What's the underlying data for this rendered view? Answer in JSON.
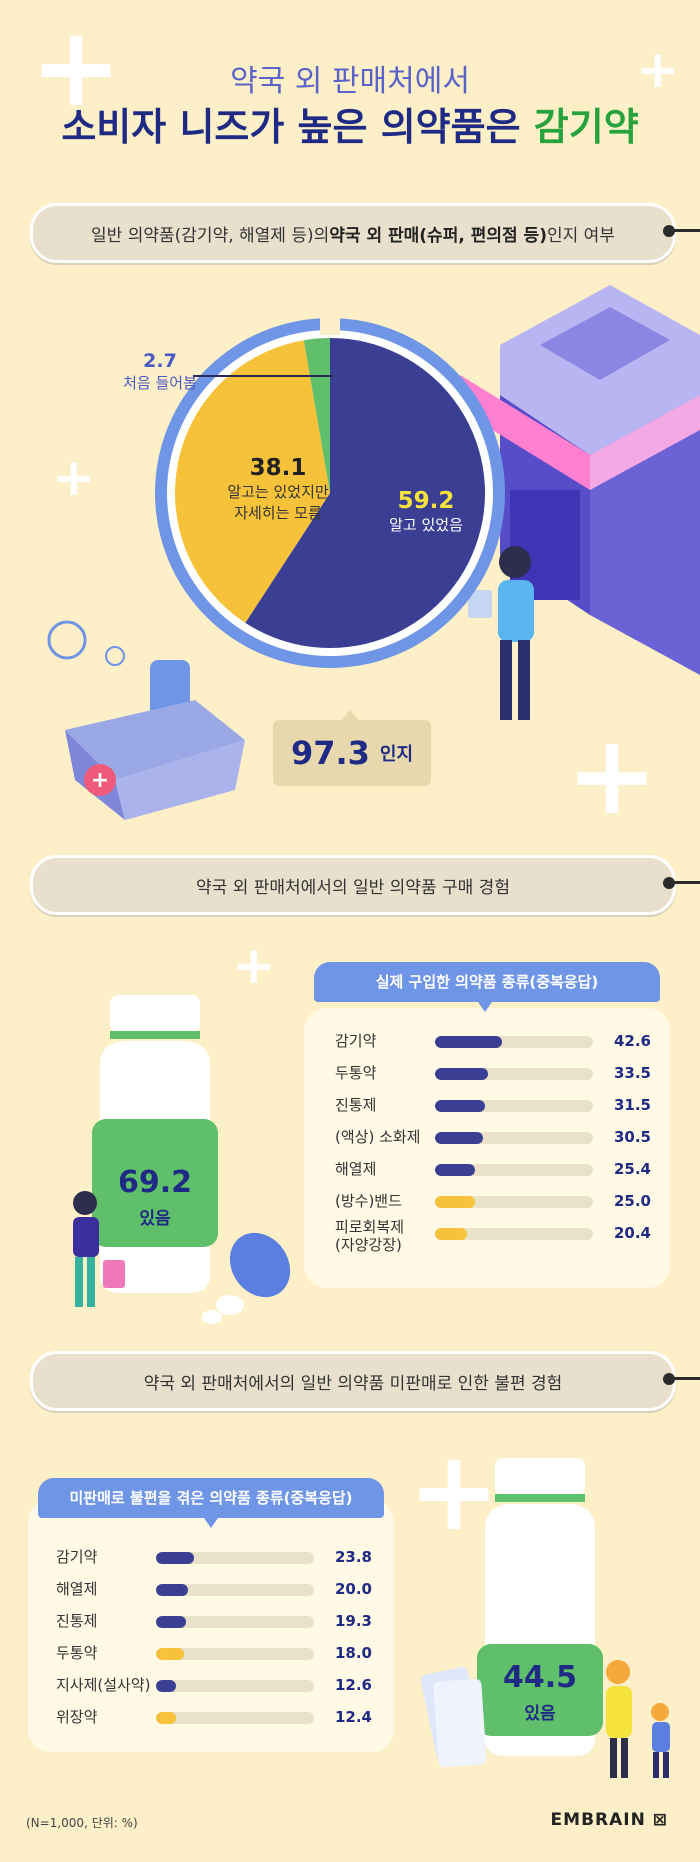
{
  "header": {
    "subtitle": "약국 외 판매처에서",
    "title_main": "소비자 니즈가 높은 의약품은 ",
    "title_highlight": "감기약"
  },
  "section1": {
    "banner_pre": "일반 의약품(감기약, 해열제 등)의 ",
    "banner_bold": "약국 외 판매(슈퍼, 편의점 등)",
    "banner_post": " 인지 여부",
    "recognition_value": "97.3",
    "recognition_label": "인지"
  },
  "section2": {
    "banner": "약국 외 판매처에서의  일반 의약품 구매 경험",
    "bottle_value": "69.2",
    "bottle_label": "있음",
    "card_title": "실제 구입한 의약품 종류(중복응답)"
  },
  "section3": {
    "banner": "약국 외 판매처에서의  일반 의약품 미판매로 인한 불편 경험",
    "bottle_value": "44.5",
    "bottle_label": "있음",
    "card_title": "미판매로 불편을 겪은 의약품 종류(중복응답)"
  },
  "footer": {
    "note": "(N=1,000, 단위: %)",
    "logo": "EMBRAIN ⊠"
  },
  "colors": {
    "navy": "#3b3f93",
    "yellow": "#f5c23a",
    "green": "#5fbf6a",
    "ring": "#6f95e6"
  },
  "chart_data": [
    {
      "type": "pie",
      "slices": [
        {
          "value_label": "59.2",
          "label": "알고 있었음",
          "value": 59.2,
          "color": "#3b3f93"
        },
        {
          "value_label": "38.1",
          "label": "알고는 있었지만\n자세히는 모름",
          "value": 38.1,
          "color": "#f5c23a"
        },
        {
          "value_label": "2.7",
          "label": "처음 들어봄",
          "value": 2.7,
          "color": "#5fbf6a"
        }
      ]
    },
    {
      "type": "bar",
      "orientation": "horizontal",
      "xlim": [
        0,
        100
      ],
      "categories": [
        "감기약",
        "두통약",
        "진통제",
        "(액상) 소화제",
        "해열제",
        "(방수)밴드",
        "피로회복제\n(자양강장)"
      ],
      "values": [
        42.6,
        33.5,
        31.5,
        30.5,
        25.4,
        25.0,
        20.4
      ],
      "value_labels": [
        "42.6",
        "33.5",
        "31.5",
        "30.5",
        "25.4",
        "25.0",
        "20.4"
      ],
      "bar_colors": [
        "#3b3f93",
        "#3b3f93",
        "#3b3f93",
        "#3b3f93",
        "#3b3f93",
        "#f5c23a",
        "#f5c23a"
      ]
    },
    {
      "type": "bar",
      "orientation": "horizontal",
      "xlim": [
        0,
        100
      ],
      "categories": [
        "감기약",
        "해열제",
        "진통제",
        "두통약",
        "지사제(설사약)",
        "위장약"
      ],
      "values": [
        23.8,
        20.0,
        19.3,
        18.0,
        12.6,
        12.4
      ],
      "value_labels": [
        "23.8",
        "20.0",
        "19.3",
        "18.0",
        "12.6",
        "12.4"
      ],
      "bar_colors": [
        "#3b3f93",
        "#3b3f93",
        "#3b3f93",
        "#f5c23a",
        "#3b3f93",
        "#f5c23a"
      ]
    }
  ]
}
